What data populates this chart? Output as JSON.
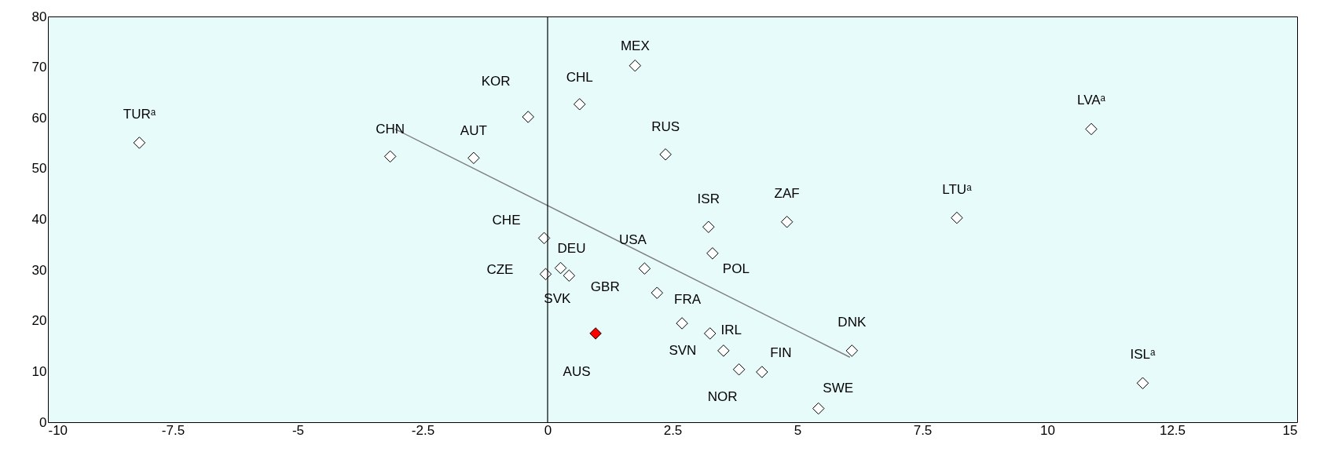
{
  "chart_data": {
    "type": "scatter",
    "xlim": [
      -10,
      15
    ],
    "xticks": [
      -10,
      -7.5,
      -5,
      -2.5,
      0,
      2.5,
      5,
      7.5,
      10,
      12.5,
      15
    ],
    "ylim": [
      0,
      80
    ],
    "yticks": [
      0,
      10,
      20,
      30,
      40,
      50,
      60,
      70,
      80
    ],
    "grid": false,
    "ref_lines": [
      {
        "axis": "x",
        "value": 0,
        "color": "#000000"
      }
    ],
    "series": [
      {
        "marker": "diamond",
        "x": [
          -8.17,
          -3.15,
          -1.48,
          -0.39,
          0.64,
          1.75,
          2.36,
          -0.07,
          0.26,
          -0.04,
          0.43,
          1.94,
          2.19,
          0.96,
          2.69,
          3.25,
          3.52,
          3.83,
          4.29,
          5.42,
          3.22,
          3.3,
          4.79,
          6.09,
          8.19,
          10.88,
          11.91
        ],
        "values": [
          55.1,
          52.4,
          52.1,
          60.2,
          62.7,
          70.3,
          52.8,
          36.3,
          30.4,
          29.2,
          28.9,
          30.3,
          25.5,
          17.5,
          19.5,
          17.5,
          14.1,
          10.4,
          9.9,
          2.7,
          38.5,
          33.3,
          39.5,
          14.1,
          40.3,
          57.8,
          7.7
        ],
        "colors": [
          "#ffffff",
          "#ffffff",
          "#ffffff",
          "#ffffff",
          "#ffffff",
          "#ffffff",
          "#ffffff",
          "#ffffff",
          "#ffffff",
          "#ffffff",
          "#ffffff",
          "#ffffff",
          "#ffffff",
          "#ff0000",
          "#ffffff",
          "#ffffff",
          "#ffffff",
          "#ffffff",
          "#ffffff",
          "#ffffff",
          "#ffffff",
          "#ffffff",
          "#ffffff",
          "#ffffff",
          "#ffffff",
          "#ffffff",
          "#ffffff"
        ]
      },
      {
        "type": "line",
        "color": "#808080",
        "x": [
          -3.05,
          6.05
        ],
        "values": [
          57.8,
          12.8
        ]
      }
    ],
    "annotations": [
      {
        "text": "TURᵃ",
        "x": -8.17,
        "y": 55.1
      },
      {
        "text": "CHN",
        "x": -3.15,
        "y": 52.4
      },
      {
        "text": "AUT",
        "x": -1.48,
        "y": 52.1
      },
      {
        "text": "KOR",
        "x": -0.39,
        "y": 60.2
      },
      {
        "text": "CHL",
        "x": 0.64,
        "y": 62.7
      },
      {
        "text": "MEX",
        "x": 1.75,
        "y": 70.3
      },
      {
        "text": "RUS",
        "x": 2.36,
        "y": 52.8
      },
      {
        "text": "CHE",
        "x": -0.07,
        "y": 36.3
      },
      {
        "text": "DEU",
        "x": 0.26,
        "y": 30.4
      },
      {
        "text": "CZE",
        "x": -0.04,
        "y": 29.2
      },
      {
        "text": "SVK",
        "x": 0.43,
        "y": 28.9
      },
      {
        "text": "USA",
        "x": 1.94,
        "y": 30.3
      },
      {
        "text": "GBR",
        "x": 2.19,
        "y": 25.5
      },
      {
        "text": "AUS",
        "x": 0.96,
        "y": 17.5
      },
      {
        "text": "FRA",
        "x": 2.69,
        "y": 19.5
      },
      {
        "text": "IRL",
        "x": 3.25,
        "y": 17.5
      },
      {
        "text": "SVN",
        "x": 3.52,
        "y": 14.1
      },
      {
        "text": "NOR",
        "x": 3.83,
        "y": 10.4
      },
      {
        "text": "FIN",
        "x": 4.29,
        "y": 9.9
      },
      {
        "text": "SWE",
        "x": 5.42,
        "y": 2.7
      },
      {
        "text": "ISR",
        "x": 3.22,
        "y": 38.5
      },
      {
        "text": "POL",
        "x": 3.3,
        "y": 33.3
      },
      {
        "text": "ZAF",
        "x": 4.79,
        "y": 39.5
      },
      {
        "text": "DNK",
        "x": 6.09,
        "y": 14.1
      },
      {
        "text": "LTUᵃ",
        "x": 8.19,
        "y": 40.3
      },
      {
        "text": "LVAᵃ",
        "x": 10.88,
        "y": 57.8
      },
      {
        "text": "ISLᵃ",
        "x": 11.91,
        "y": 7.7
      }
    ]
  }
}
